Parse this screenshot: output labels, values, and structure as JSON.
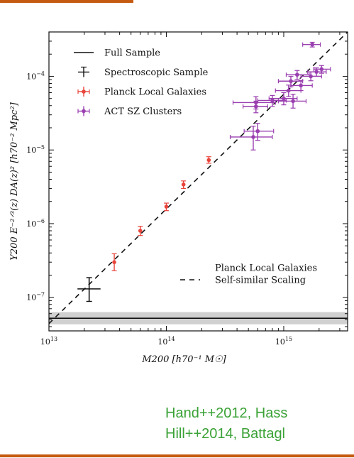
{
  "colors": {
    "accent": "#c55a11",
    "citation": "#3aa236",
    "planck": "#e8443a",
    "act": "#9a3fb0",
    "spectroscopic": "#111111",
    "band": "#d0d0d0"
  },
  "chart_data": {
    "type": "scatter",
    "x_scale": "log",
    "y_scale": "log",
    "xlim": [
      10000000000000.0,
      3500000000000000.0
    ],
    "ylim": [
      3.5e-08,
      0.0004
    ],
    "xlabel": "M200 [h70⁻¹ M☉]",
    "ylabel": "Y200 E⁻²ᐟ³(z) DA(z)² [h70⁻² Mpc²]",
    "x_ticks": [
      {
        "value": 10000000000000.0,
        "base": "10",
        "exp": "13"
      },
      {
        "value": 100000000000000.0,
        "base": "10",
        "exp": "14"
      },
      {
        "value": 1000000000000000.0,
        "base": "10",
        "exp": "15"
      }
    ],
    "y_ticks": [
      {
        "value": 1e-07,
        "base": "10",
        "exp": "−7"
      },
      {
        "value": 1e-06,
        "base": "10",
        "exp": "−6"
      },
      {
        "value": 1e-05,
        "base": "10",
        "exp": "−5"
      },
      {
        "value": 0.0001,
        "base": "10",
        "exp": "−4"
      }
    ],
    "legend_top": [
      {
        "label": "Full Sample",
        "style": "line"
      },
      {
        "label": "Spectroscopic Sample",
        "style": "cross"
      },
      {
        "label": "Planck Local Galaxies",
        "style": "errorbar",
        "series": "planck"
      },
      {
        "label": "ACT SZ Clusters",
        "style": "errorbar",
        "series": "act"
      }
    ],
    "legend_bottom": [
      {
        "label": "Planck Local Galaxies",
        "style": "none"
      },
      {
        "label": "Self-similar Scaling",
        "style": "dashed"
      }
    ],
    "full_sample": {
      "y": 5.2e-08,
      "y_lo": 4.3e-08,
      "y_hi": 6.3e-08
    },
    "self_similar": {
      "points": [
        [
          10000000000000.0,
          4.4e-08
        ],
        [
          3500000000000000.0,
          0.0004
        ]
      ]
    },
    "spectroscopic": {
      "x": 22000000000000.0,
      "y": 1.3e-07,
      "xerr": [
        17500000000000.0,
        27500000000000.0
      ],
      "yerr": [
        8.8e-08,
        1.85e-07
      ]
    },
    "series": [
      {
        "name": "Planck Local Galaxies",
        "key": "planck",
        "points": [
          {
            "x": 36000000000000.0,
            "y": 3e-07,
            "ylo": 2.3e-07,
            "yhi": 3.9e-07
          },
          {
            "x": 60000000000000.0,
            "y": 8e-07,
            "ylo": 6.9e-07,
            "yhi": 9.2e-07
          },
          {
            "x": 100000000000000.0,
            "y": 1.7e-06,
            "ylo": 1.5e-06,
            "yhi": 1.9e-06
          },
          {
            "x": 140000000000000.0,
            "y": 3.4e-06,
            "ylo": 3e-06,
            "yhi": 3.8e-06
          },
          {
            "x": 230000000000000.0,
            "y": 7.3e-06,
            "ylo": 6.6e-06,
            "yhi": 8.1e-06
          }
        ]
      },
      {
        "name": "ACT SZ Clusters",
        "key": "act",
        "points": [
          {
            "x": 550000000000000.0,
            "y": 1.5e-05,
            "xlo": 350000000000000.0,
            "xhi": 800000000000000.0,
            "ylo": 1e-05,
            "yhi": 2.1e-05
          },
          {
            "x": 600000000000000.0,
            "y": 1.8e-05,
            "xlo": 460000000000000.0,
            "xhi": 820000000000000.0,
            "ylo": 1.35e-05,
            "yhi": 2.3e-05
          },
          {
            "x": 580000000000000.0,
            "y": 4.4e-05,
            "xlo": 370000000000000.0,
            "xhi": 850000000000000.0,
            "ylo": 3.6e-05,
            "yhi": 5.3e-05
          },
          {
            "x": 580000000000000.0,
            "y": 3.9e-05,
            "xlo": 450000000000000.0,
            "xhi": 730000000000000.0,
            "ylo": 3.2e-05,
            "yhi": 4.6e-05
          },
          {
            "x": 800000000000000.0,
            "y": 4.7e-05,
            "xlo": 600000000000000.0,
            "xhi": 1050000000000000.0,
            "ylo": 3.9e-05,
            "yhi": 5.5e-05
          },
          {
            "x": 1000000000000000.0,
            "y": 5e-05,
            "xlo": 750000000000000.0,
            "xhi": 1300000000000000.0,
            "ylo": 4.1e-05,
            "yhi": 6e-05
          },
          {
            "x": 1200000000000000.0,
            "y": 4.6e-05,
            "xlo": 900000000000000.0,
            "xhi": 1550000000000000.0,
            "ylo": 3.7e-05,
            "yhi": 5.7e-05
          },
          {
            "x": 1100000000000000.0,
            "y": 6.4e-05,
            "xlo": 850000000000000.0,
            "xhi": 1400000000000000.0,
            "ylo": 5.3e-05,
            "yhi": 7.6e-05
          },
          {
            "x": 1150000000000000.0,
            "y": 8.6e-05,
            "xlo": 900000000000000.0,
            "xhi": 1450000000000000.0,
            "ylo": 7.2e-05,
            "yhi": 0.0001
          },
          {
            "x": 1300000000000000.0,
            "y": 0.000105,
            "xlo": 1050000000000000.0,
            "xhi": 1650000000000000.0,
            "ylo": 9e-05,
            "yhi": 0.00012
          },
          {
            "x": 1400000000000000.0,
            "y": 7.5e-05,
            "xlo": 1150000000000000.0,
            "xhi": 1750000000000000.0,
            "ylo": 6.4e-05,
            "yhi": 8.8e-05
          },
          {
            "x": 1700000000000000.0,
            "y": 0.0001,
            "xlo": 1400000000000000.0,
            "xhi": 2100000000000000.0,
            "ylo": 8.7e-05,
            "yhi": 0.000115
          },
          {
            "x": 1900000000000000.0,
            "y": 0.000115,
            "xlo": 1600000000000000.0,
            "xhi": 2300000000000000.0,
            "ylo": 0.0001,
            "yhi": 0.00013
          },
          {
            "x": 2100000000000000.0,
            "y": 0.000125,
            "xlo": 1800000000000000.0,
            "xhi": 2500000000000000.0,
            "ylo": 0.00011,
            "yhi": 0.00014
          },
          {
            "x": 1750000000000000.0,
            "y": 0.00027,
            "xlo": 1450000000000000.0,
            "xhi": 2050000000000000.0,
            "ylo": 0.00025,
            "yhi": 0.00029
          }
        ]
      }
    ]
  },
  "citation": {
    "line1": "Hand++2012, Hass",
    "line2": "Hill++2014, Battagl"
  }
}
